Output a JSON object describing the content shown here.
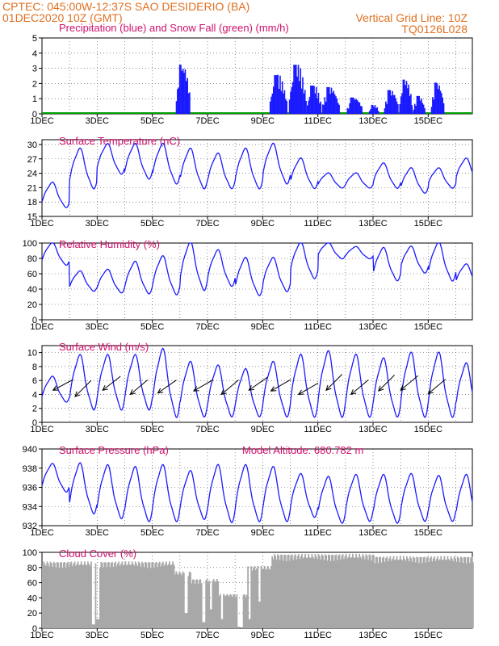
{
  "header": {
    "line1": "CPTEC:   045:00W-12:37S  SAO DESIDERIO (BA)",
    "line2": "01DEC2020 10Z (GMT)",
    "grid_note": "Vertical Grid Line: 10Z",
    "code": "TQ0126L028"
  },
  "colors": {
    "header": "#e07020",
    "title": "#d0106c",
    "series": "#1a1aff",
    "snow": "#00a000",
    "cloud": "#a8a8a8",
    "grid": "#444444"
  },
  "x_axis": {
    "day_min": 1,
    "day_max": 16.6,
    "labels": [
      "1DEC",
      "3DEC",
      "5DEC",
      "7DEC",
      "9DEC",
      "11DEC",
      "13DEC",
      "15DEC"
    ],
    "label_days": [
      1,
      3,
      5,
      7,
      9,
      11,
      13,
      15
    ]
  },
  "chart_data": [
    {
      "id": "precip",
      "type": "bar",
      "title": "Precipitation (blue) and Snow Fall (green) (mm/h)",
      "ylim": [
        0,
        5
      ],
      "yticks": [
        0,
        1,
        2,
        3,
        4,
        5
      ],
      "series": [
        {
          "name": "Precipitation",
          "color": "#1a1aff",
          "bursts": [
            [
              5.85,
              6.35,
              3.3
            ],
            [
              9.25,
              9.85,
              2.6
            ],
            [
              9.95,
              10.55,
              3.3
            ],
            [
              10.6,
              11.1,
              1.9
            ],
            [
              11.15,
              11.75,
              1.8
            ],
            [
              12.05,
              12.6,
              1.1
            ],
            [
              12.85,
              13.2,
              0.6
            ],
            [
              13.4,
              13.9,
              1.6
            ],
            [
              13.95,
              14.4,
              2.3
            ],
            [
              14.45,
              14.85,
              1.2
            ],
            [
              15.1,
              15.55,
              2.1
            ]
          ]
        },
        {
          "name": "Snow Fall",
          "color": "#00a000",
          "values": []
        }
      ]
    },
    {
      "id": "temp",
      "type": "line",
      "title": "Surface Temperature (nC)",
      "ylim": [
        15,
        31
      ],
      "yticks": [
        15,
        18,
        21,
        24,
        27,
        30
      ],
      "daily": [
        [
          1,
          17,
          22
        ],
        [
          2,
          21,
          29
        ],
        [
          3,
          24,
          30
        ],
        [
          4,
          23,
          30
        ],
        [
          5,
          22,
          30
        ],
        [
          6,
          21,
          29
        ],
        [
          7,
          21,
          28
        ],
        [
          8,
          21,
          29
        ],
        [
          9,
          22,
          30
        ],
        [
          10,
          21,
          27
        ],
        [
          11,
          21,
          24
        ],
        [
          12,
          21,
          24
        ],
        [
          13,
          21,
          26
        ],
        [
          14,
          20,
          25
        ],
        [
          15,
          21,
          25
        ],
        [
          16,
          22,
          27
        ]
      ]
    },
    {
      "id": "rh",
      "type": "line",
      "title": "Relative Humidity (%)",
      "ylim": [
        0,
        100
      ],
      "yticks": [
        0,
        20,
        40,
        60,
        80,
        100
      ],
      "daily": [
        [
          1,
          72,
          100
        ],
        [
          2,
          38,
          63
        ],
        [
          3,
          36,
          65
        ],
        [
          4,
          35,
          75
        ],
        [
          5,
          34,
          82
        ],
        [
          6,
          40,
          100
        ],
        [
          7,
          45,
          90
        ],
        [
          8,
          33,
          80
        ],
        [
          9,
          38,
          80
        ],
        [
          10,
          55,
          100
        ],
        [
          11,
          80,
          100
        ],
        [
          12,
          80,
          95
        ],
        [
          13,
          52,
          93
        ],
        [
          14,
          62,
          95
        ],
        [
          15,
          52,
          100
        ],
        [
          16,
          44,
          72
        ]
      ]
    },
    {
      "id": "wind",
      "type": "line",
      "title": "Surface Wind (m/s)",
      "ylim": [
        0,
        11
      ],
      "yticks": [
        0,
        2,
        4,
        6,
        8,
        10
      ],
      "daily": [
        [
          1,
          3,
          6.5
        ],
        [
          2,
          2,
          9.5
        ],
        [
          3,
          2,
          9.5
        ],
        [
          4,
          2,
          9.5
        ],
        [
          5,
          1,
          10.3
        ],
        [
          6,
          1,
          8.5
        ],
        [
          7,
          1,
          8
        ],
        [
          8,
          1,
          7.5
        ],
        [
          9,
          1,
          8.5
        ],
        [
          10,
          1,
          9.5
        ],
        [
          11,
          1,
          10
        ],
        [
          12,
          1,
          9.5
        ],
        [
          13,
          1,
          9
        ],
        [
          14,
          1,
          9.8
        ],
        [
          15,
          1,
          9.8
        ],
        [
          16,
          1,
          8.3
        ]
      ],
      "arrows": [
        [
          1.4,
          4.6,
          28
        ],
        [
          2.2,
          3.7,
          45
        ],
        [
          3.2,
          4.6,
          38
        ],
        [
          4.2,
          4.0,
          40
        ],
        [
          5.2,
          4.2,
          35
        ],
        [
          6.5,
          4.5,
          30
        ],
        [
          7.5,
          4.0,
          40
        ],
        [
          8.5,
          4.6,
          35
        ],
        [
          9.3,
          4.5,
          30
        ],
        [
          10.3,
          4.0,
          30
        ],
        [
          11.3,
          4.6,
          45
        ],
        [
          12.2,
          4.0,
          40
        ],
        [
          13.2,
          4.5,
          45
        ],
        [
          14.0,
          4.6,
          40
        ],
        [
          15.0,
          4.1,
          40
        ]
      ]
    },
    {
      "id": "pres",
      "type": "line",
      "title": "Surface Pressure (hPa)",
      "annotation": "Model Altitude: 680.782 m",
      "ylim": [
        932,
        940
      ],
      "yticks": [
        932,
        934,
        936,
        938,
        940
      ],
      "daily": [
        [
          1,
          935.6,
          938.4
        ],
        [
          2,
          933.4,
          938.4
        ],
        [
          3,
          932.9,
          938.2
        ],
        [
          4,
          932.6,
          938.0
        ],
        [
          5,
          932.6,
          938.2
        ],
        [
          6,
          932.8,
          937.6
        ],
        [
          7,
          932.5,
          938.2
        ],
        [
          8,
          932.6,
          938.2
        ],
        [
          9,
          932.6,
          938.0
        ],
        [
          10,
          933.0,
          937.3
        ],
        [
          11,
          932.4,
          937.0
        ],
        [
          12,
          932.6,
          937.2
        ],
        [
          13,
          932.4,
          937.2
        ],
        [
          14,
          932.6,
          937.3
        ],
        [
          15,
          932.6,
          937.1
        ],
        [
          16,
          932.2,
          937.2
        ]
      ]
    },
    {
      "id": "cloud",
      "type": "bar",
      "title": "Cloud Cover (%)",
      "ylim": [
        0,
        100
      ],
      "yticks": [
        0,
        20,
        40,
        60,
        80,
        100
      ],
      "periods": [
        [
          1,
          5.8,
          88
        ],
        [
          5.8,
          6.4,
          75
        ],
        [
          6.4,
          7.4,
          65
        ],
        [
          7.4,
          8.4,
          45
        ],
        [
          8.4,
          9.3,
          82
        ],
        [
          9.3,
          13.0,
          98
        ],
        [
          13.0,
          16.6,
          95
        ]
      ],
      "dips": [
        [
          2.85,
          5
        ],
        [
          3.0,
          12
        ],
        [
          6.2,
          20
        ],
        [
          6.85,
          8
        ],
        [
          7.1,
          25
        ],
        [
          7.5,
          12
        ],
        [
          8.1,
          2
        ],
        [
          8.2,
          0
        ],
        [
          8.5,
          12
        ],
        [
          8.85,
          35
        ]
      ]
    }
  ]
}
